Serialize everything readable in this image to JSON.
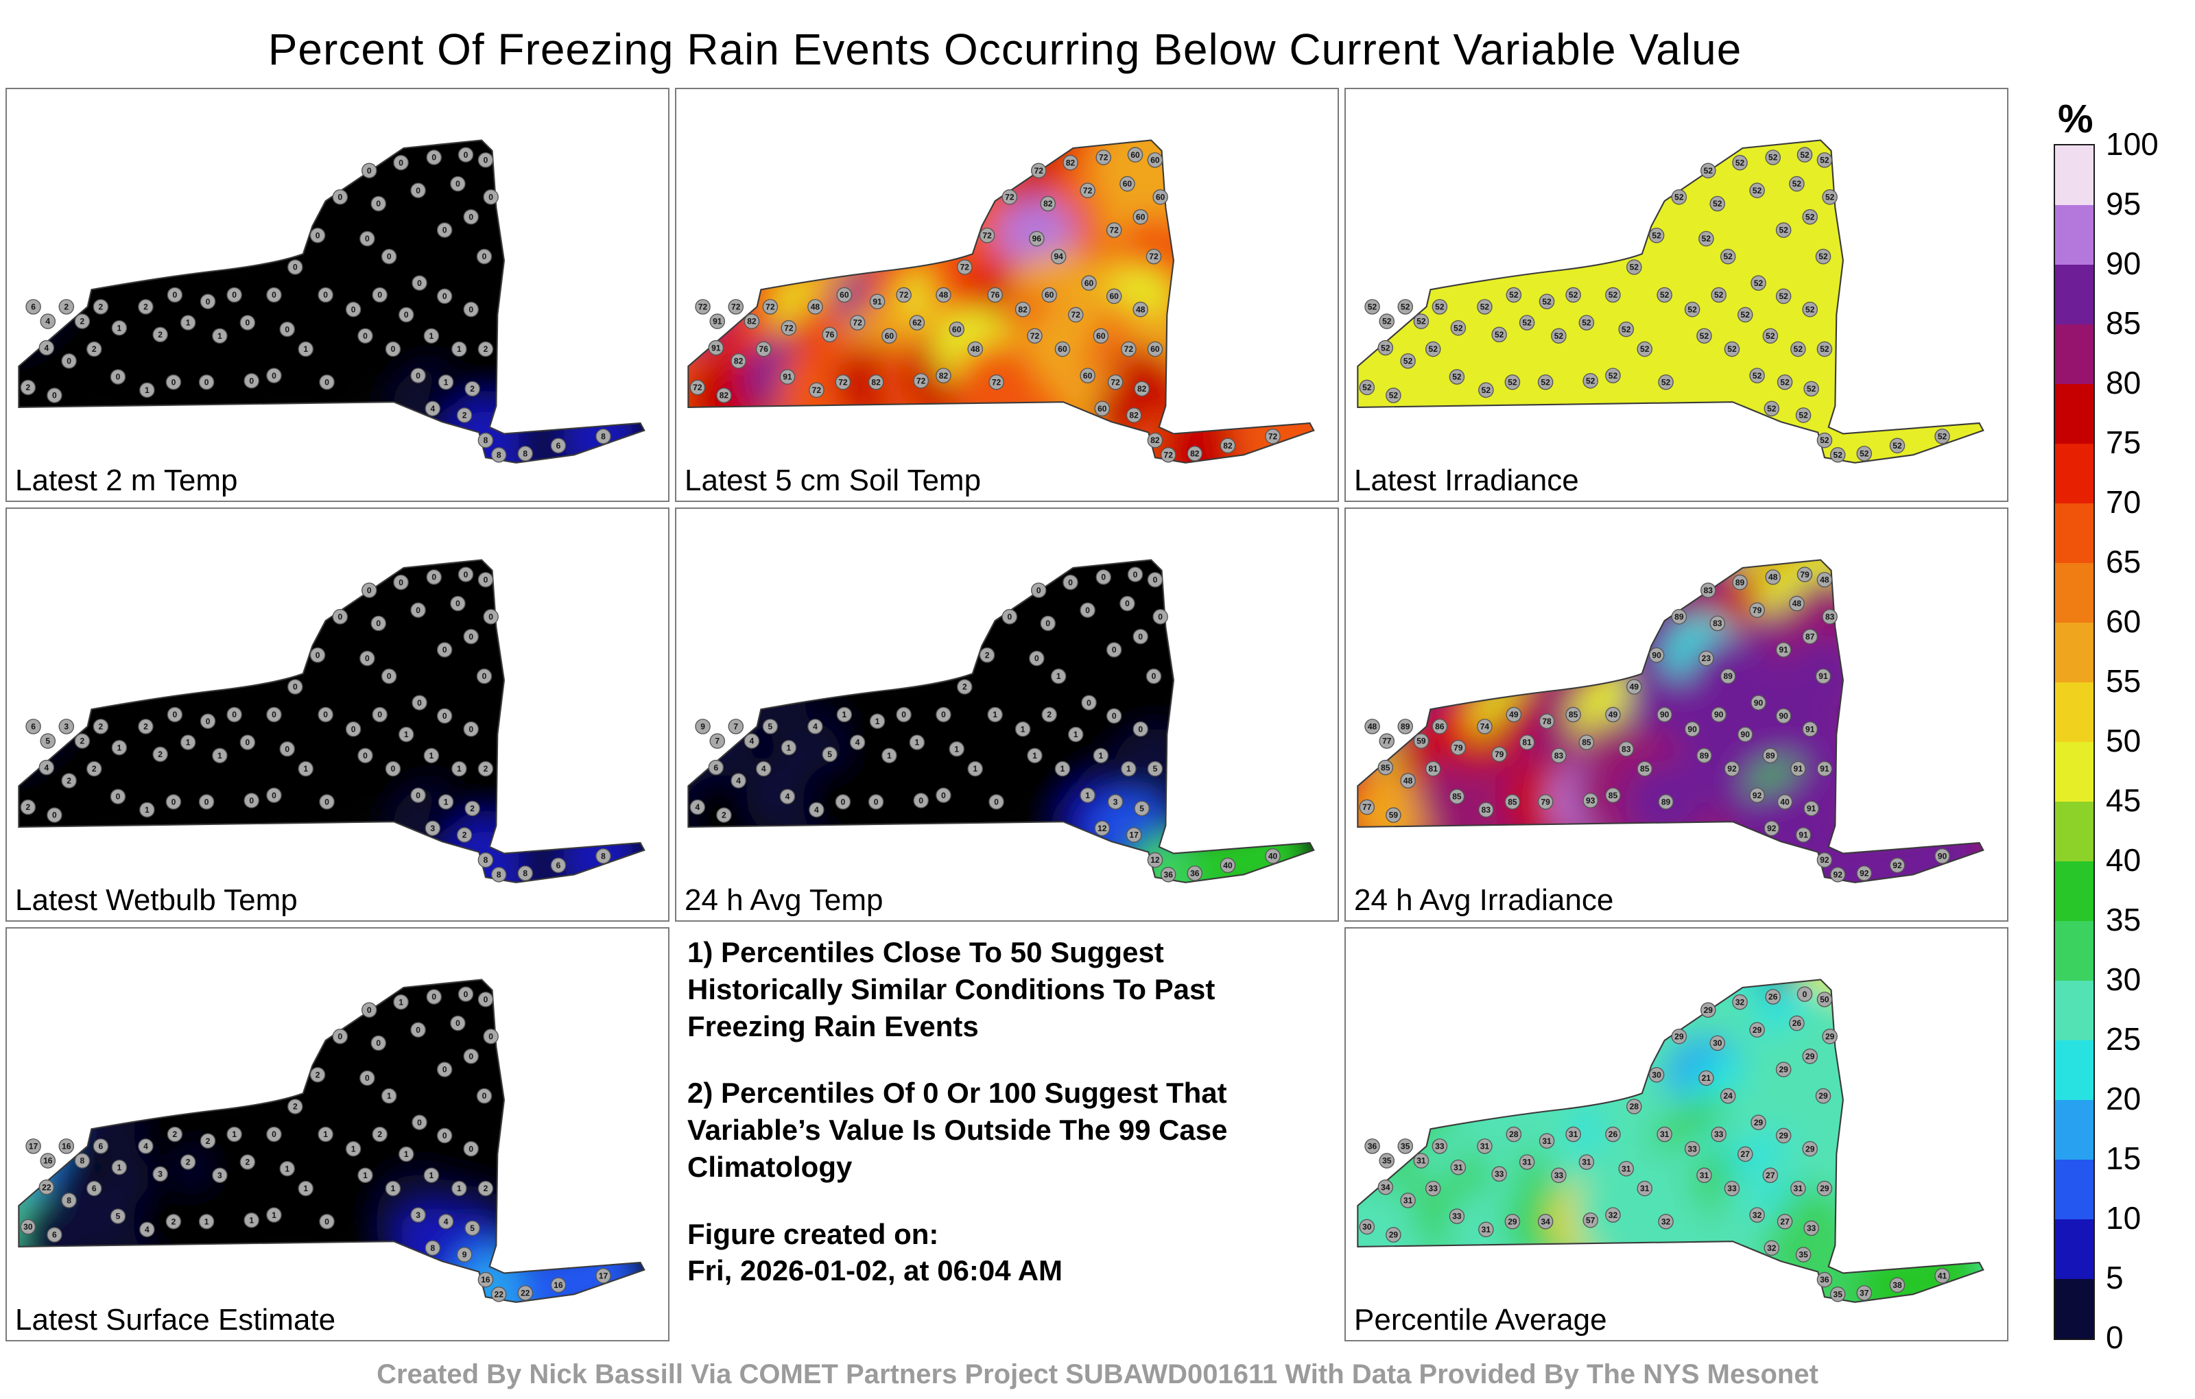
{
  "title": "Percent Of Freezing Rain Events Occurring Below Current Variable Value",
  "footer": "Created By Nick Bassill Via COMET Partners Project SUBAWD001611 With Data Provided By The NYS Mesonet",
  "notes": {
    "note1": "1) Percentiles Close To 50 Suggest Historically Similar Conditions To Past Freezing Rain Events",
    "note2": "2) Percentiles Of 0 Or 100 Suggest That Variable’s Value Is Outside The 99 Case Climatology",
    "created_label": "Figure created on:",
    "created_value": "Fri, 2026-01-02, at 06:04 AM"
  },
  "chart_data": {
    "type": "heatmap",
    "title": "Percent Of Freezing Rain Events Occurring Below Current Variable Value",
    "region": "New York State",
    "colorbar": {
      "label": "%",
      "min": 0,
      "max": 100,
      "step": 5,
      "ticks": [
        100,
        95,
        90,
        85,
        80,
        75,
        70,
        65,
        60,
        55,
        50,
        45,
        40,
        35,
        30,
        25,
        20,
        15,
        10,
        5,
        0
      ],
      "colors_low_to_high": [
        "#050505",
        "#0a0a38",
        "#1414b8",
        "#2456f0",
        "#28a2f0",
        "#28e2e2",
        "#52e2b4",
        "#3cd260",
        "#28c628",
        "#8cd228",
        "#e6ee28",
        "#f0d21e",
        "#f0a51e",
        "#f07d14",
        "#f0540a",
        "#e62000",
        "#c60000",
        "#96146e",
        "#6e1e96",
        "#b478dc",
        "#f0def0"
      ]
    },
    "stations": [
      [
        40,
        318
      ],
      [
        62,
        340
      ],
      [
        90,
        318
      ],
      [
        114,
        340
      ],
      [
        142,
        318
      ],
      [
        60,
        380
      ],
      [
        94,
        400
      ],
      [
        132,
        382
      ],
      [
        32,
        440
      ],
      [
        72,
        452
      ],
      [
        170,
        350
      ],
      [
        168,
        424
      ],
      [
        210,
        318
      ],
      [
        232,
        360
      ],
      [
        254,
        300
      ],
      [
        274,
        342
      ],
      [
        212,
        444
      ],
      [
        252,
        432
      ],
      [
        304,
        310
      ],
      [
        322,
        362
      ],
      [
        302,
        432
      ],
      [
        344,
        300
      ],
      [
        364,
        342
      ],
      [
        370,
        430
      ],
      [
        404,
        300
      ],
      [
        424,
        352
      ],
      [
        404,
        422
      ],
      [
        436,
        258
      ],
      [
        470,
        210
      ],
      [
        504,
        152
      ],
      [
        548,
        112
      ],
      [
        596,
        100
      ],
      [
        646,
        92
      ],
      [
        694,
        88
      ],
      [
        724,
        96
      ],
      [
        562,
        162
      ],
      [
        622,
        142
      ],
      [
        682,
        132
      ],
      [
        732,
        152
      ],
      [
        545,
        215
      ],
      [
        578,
        242
      ],
      [
        482,
        300
      ],
      [
        524,
        322
      ],
      [
        564,
        300
      ],
      [
        542,
        362
      ],
      [
        604,
        330
      ],
      [
        584,
        382
      ],
      [
        624,
        282
      ],
      [
        452,
        382
      ],
      [
        484,
        432
      ],
      [
        662,
        202
      ],
      [
        702,
        182
      ],
      [
        722,
        242
      ],
      [
        662,
        302
      ],
      [
        702,
        322
      ],
      [
        642,
        362
      ],
      [
        684,
        382
      ],
      [
        724,
        382
      ],
      [
        622,
        422
      ],
      [
        664,
        432
      ],
      [
        704,
        442
      ],
      [
        644,
        472
      ],
      [
        692,
        482
      ],
      [
        724,
        520
      ],
      [
        744,
        542
      ],
      [
        784,
        540
      ],
      [
        834,
        528
      ],
      [
        902,
        514
      ]
    ],
    "panels": [
      {
        "label": "Latest 2 m Temp",
        "values": [
          6,
          4,
          2,
          2,
          2,
          4,
          0,
          2,
          2,
          0,
          1,
          0,
          2,
          2,
          0,
          1,
          1,
          0,
          0,
          1,
          0,
          0,
          0,
          0,
          0,
          0,
          0,
          0,
          0,
          0,
          0,
          0,
          0,
          0,
          0,
          0,
          0,
          0,
          0,
          0,
          0,
          0,
          0,
          0,
          0,
          0,
          0,
          0,
          1,
          0,
          0,
          0,
          0,
          0,
          0,
          1,
          1,
          2,
          0,
          1,
          2,
          4,
          2,
          8,
          8,
          8,
          6,
          8
        ]
      },
      {
        "label": "Latest 5 cm Soil Temp",
        "values": [
          72,
          91,
          72,
          82,
          72,
          91,
          82,
          76,
          72,
          82,
          72,
          91,
          48,
          76,
          60,
          72,
          72,
          72,
          91,
          60,
          82,
          72,
          62,
          72,
          48,
          60,
          82,
          72,
          72,
          72,
          72,
          82,
          72,
          60,
          60,
          82,
          72,
          60,
          60,
          96,
          94,
          76,
          82,
          60,
          72,
          72,
          60,
          60,
          48,
          72,
          72,
          60,
          72,
          60,
          48,
          60,
          72,
          60,
          60,
          72,
          82,
          60,
          82,
          82,
          72,
          82,
          82,
          72
        ]
      },
      {
        "label": "Latest Irradiance",
        "values": [
          52,
          52,
          52,
          52,
          52,
          52,
          52,
          52,
          52,
          52,
          52,
          52,
          52,
          52,
          52,
          52,
          52,
          52,
          52,
          52,
          52,
          52,
          52,
          52,
          52,
          52,
          52,
          52,
          52,
          52,
          52,
          52,
          52,
          52,
          52,
          52,
          52,
          52,
          52,
          52,
          52,
          52,
          52,
          52,
          52,
          52,
          52,
          52,
          52,
          52,
          52,
          52,
          52,
          52,
          52,
          52,
          52,
          52,
          52,
          52,
          52,
          52,
          52,
          52,
          52,
          52,
          52,
          52
        ]
      },
      {
        "label": "Latest Wetbulb Temp",
        "values": [
          6,
          5,
          3,
          2,
          2,
          4,
          2,
          2,
          2,
          0,
          1,
          0,
          2,
          2,
          0,
          1,
          1,
          0,
          0,
          1,
          0,
          0,
          0,
          0,
          0,
          0,
          0,
          0,
          0,
          0,
          0,
          0,
          0,
          0,
          0,
          0,
          0,
          0,
          0,
          0,
          0,
          0,
          0,
          0,
          0,
          1,
          0,
          0,
          1,
          0,
          0,
          0,
          0,
          0,
          0,
          1,
          1,
          2,
          0,
          1,
          2,
          3,
          2,
          8,
          8,
          8,
          6,
          8
        ]
      },
      {
        "label": "24 h Avg Temp",
        "values": [
          9,
          7,
          7,
          4,
          5,
          6,
          4,
          4,
          4,
          2,
          1,
          4,
          4,
          5,
          1,
          4,
          4,
          0,
          1,
          1,
          0,
          0,
          1,
          0,
          0,
          1,
          0,
          2,
          2,
          0,
          0,
          0,
          0,
          0,
          0,
          0,
          0,
          0,
          0,
          0,
          1,
          1,
          1,
          2,
          1,
          1,
          1,
          0,
          1,
          0,
          0,
          0,
          0,
          0,
          0,
          1,
          1,
          5,
          1,
          3,
          5,
          12,
          17,
          12,
          36,
          36,
          40,
          40
        ]
      },
      {
        "label": "24 h Avg Irradiance",
        "values": [
          48,
          77,
          89,
          59,
          86,
          85,
          48,
          81,
          77,
          59,
          79,
          85,
          74,
          79,
          49,
          81,
          83,
          85,
          78,
          83,
          79,
          85,
          85,
          93,
          49,
          83,
          85,
          49,
          90,
          89,
          83,
          89,
          48,
          79,
          48,
          83,
          79,
          48,
          83,
          23,
          89,
          90,
          90,
          90,
          89,
          90,
          92,
          90,
          85,
          89,
          91,
          87,
          91,
          90,
          91,
          89,
          91,
          91,
          92,
          40,
          91,
          92,
          91,
          92,
          92,
          92,
          92,
          90
        ]
      },
      {
        "label": "Latest Surface Estimate",
        "values": [
          17,
          16,
          16,
          8,
          6,
          22,
          8,
          6,
          30,
          6,
          1,
          5,
          4,
          3,
          2,
          2,
          4,
          2,
          2,
          3,
          1,
          1,
          2,
          1,
          0,
          1,
          1,
          2,
          2,
          0,
          0,
          1,
          0,
          0,
          0,
          0,
          0,
          0,
          0,
          0,
          1,
          1,
          1,
          2,
          1,
          1,
          1,
          0,
          1,
          0,
          0,
          0,
          0,
          0,
          0,
          1,
          1,
          2,
          3,
          4,
          5,
          8,
          9,
          16,
          22,
          22,
          16,
          17
        ]
      },
      {
        "label": "Percentile Average",
        "values": [
          36,
          35,
          35,
          31,
          33,
          34,
          31,
          33,
          30,
          29,
          31,
          33,
          31,
          33,
          28,
          31,
          31,
          29,
          31,
          33,
          34,
          31,
          31,
          57,
          26,
          31,
          32,
          28,
          30,
          29,
          29,
          32,
          26,
          0,
          50,
          30,
          29,
          26,
          29,
          21,
          24,
          31,
          33,
          33,
          31,
          27,
          33,
          29,
          31,
          32,
          29,
          29,
          29,
          29,
          29,
          27,
          31,
          29,
          32,
          27,
          33,
          32,
          35,
          36,
          35,
          37,
          38,
          41
        ]
      }
    ]
  }
}
